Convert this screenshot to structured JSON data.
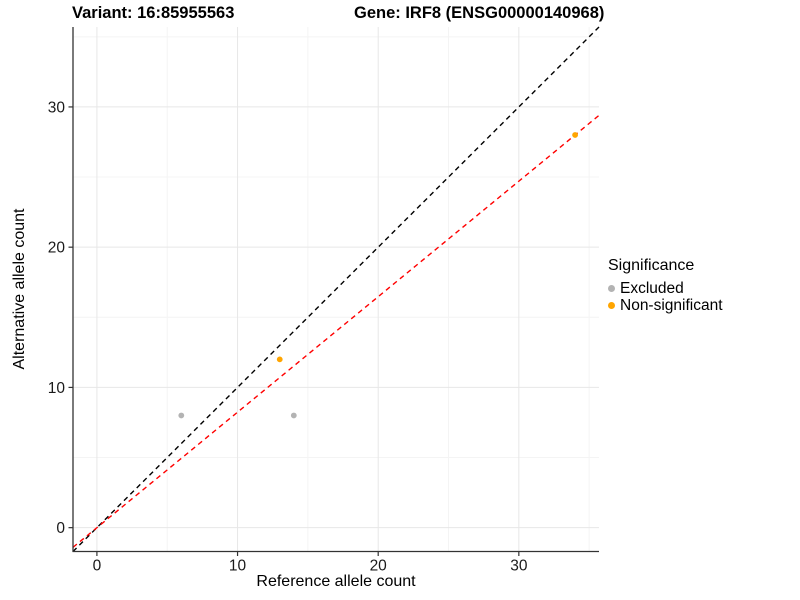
{
  "chart_data": {
    "type": "scatter",
    "titles": {
      "variant": "Variant: 16:85955563",
      "gene": "Gene: IRF8 (ENSG00000140968)"
    },
    "xlabel": "Reference allele count",
    "ylabel": "Alternative allele count",
    "xlim": [
      -1.7,
      35.7
    ],
    "ylim": [
      -1.7,
      35.7
    ],
    "x_ticks": [
      0,
      10,
      20,
      30
    ],
    "y_ticks": [
      0,
      10,
      20,
      30
    ],
    "x_minor_ticks": [
      5,
      15,
      25,
      35
    ],
    "y_minor_ticks": [
      5,
      15,
      25,
      35
    ],
    "grid": "major+minor",
    "legend": {
      "title": "Significance",
      "position": "right"
    },
    "series": [
      {
        "name": "Excluded",
        "color": "#B3B3B3",
        "points": [
          [
            6,
            8
          ],
          [
            14,
            8
          ]
        ]
      },
      {
        "name": "Non-significant",
        "color": "#FFA500",
        "points": [
          [
            13,
            12
          ],
          [
            34,
            28
          ]
        ]
      }
    ],
    "lines": [
      {
        "name": "identity",
        "style": "dashed",
        "color": "#000000",
        "slope": 1,
        "intercept": 0
      },
      {
        "name": "fit",
        "style": "dashed",
        "color": "#FF0000",
        "slope": 0.8235,
        "intercept": 0
      }
    ],
    "colors": {
      "grid_major": "#E7E7E7",
      "grid_minor": "#F4F4F4",
      "axis": "#333333",
      "tick_text": "#1A1A1A"
    }
  }
}
